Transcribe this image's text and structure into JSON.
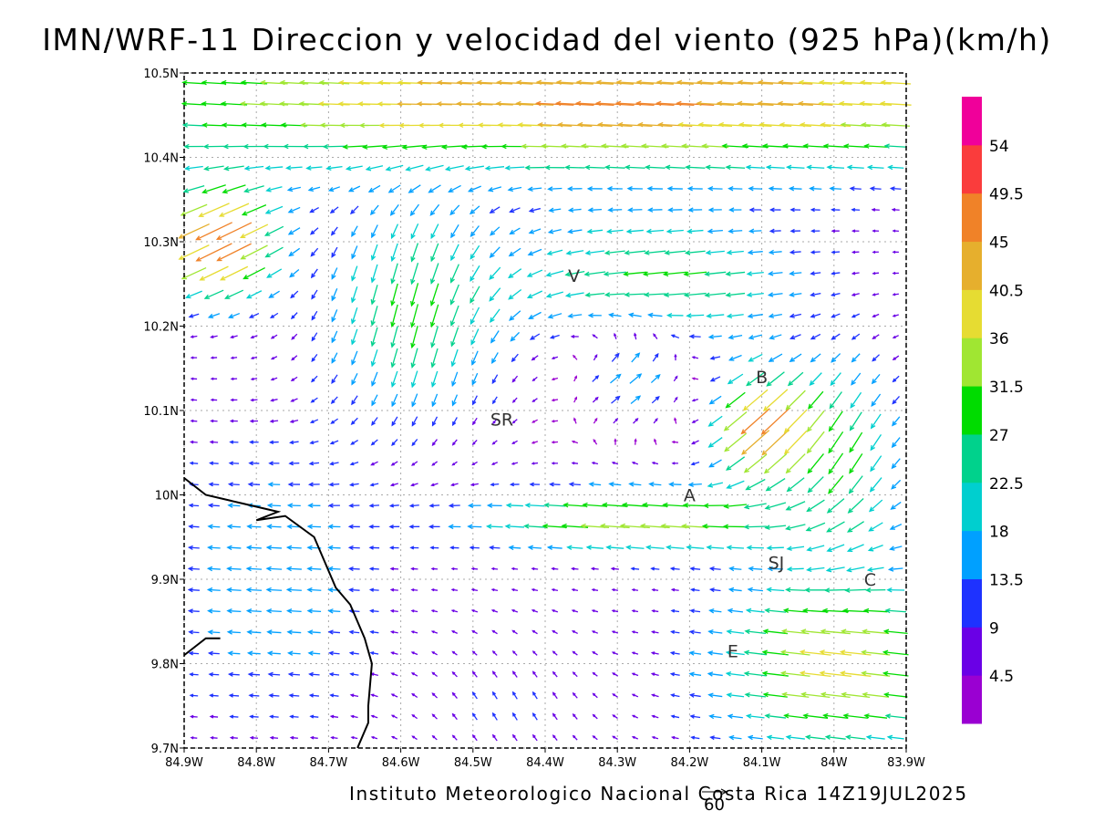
{
  "title": "IMN/WRF-11 Direccion y velocidad del viento (925 hPa)(km/h)",
  "footer": "Instituto Meteorologico Nacional Costa Rica 14Z19JUL2025",
  "reference_vector_label": "60",
  "colors": {
    "grid": "#aaaaaa",
    "frame": "#000000",
    "coast": "#000000"
  },
  "chart_data": {
    "type": "vector-field",
    "title": "IMN/WRF-11 Direccion y velocidad del viento (925 hPa)(km/h)",
    "variable": "wind direction and speed",
    "level": "925 hPa",
    "units": "km/h",
    "valid_time": "14Z19JUL2025",
    "x_ticks": [
      "84.9W",
      "84.8W",
      "84.7W",
      "84.6W",
      "84.5W",
      "84.4W",
      "84.3W",
      "84.2W",
      "84.1W",
      "84W",
      "83.9W"
    ],
    "x_tick_values": [
      -84.9,
      -84.8,
      -84.7,
      -84.6,
      -84.5,
      -84.4,
      -84.3,
      -84.2,
      -84.1,
      -84.0,
      -83.9
    ],
    "y_ticks": [
      "9.7N",
      "9.8N",
      "9.9N",
      "10N",
      "10.1N",
      "10.2N",
      "10.3N",
      "10.4N",
      "10.5N"
    ],
    "y_tick_values": [
      9.7,
      9.8,
      9.9,
      10.0,
      10.1,
      10.2,
      10.3,
      10.4,
      10.5
    ],
    "xlim": [
      -84.9,
      -83.9
    ],
    "ylim": [
      9.7,
      10.5
    ],
    "grid": true,
    "reference_vector": {
      "value": 60,
      "label": "60"
    },
    "colorbar": {
      "labels": [
        "4.5",
        "9",
        "13.5",
        "18",
        "22.5",
        "27",
        "31.5",
        "36",
        "40.5",
        "45",
        "49.5",
        "54"
      ],
      "values": [
        4.5,
        9,
        13.5,
        18,
        22.5,
        27,
        31.5,
        36,
        40.5,
        45,
        49.5,
        54
      ],
      "colors": [
        "#9a00d2",
        "#6a00e6",
        "#1e32ff",
        "#00a0ff",
        "#00cfcf",
        "#00d28c",
        "#00dc00",
        "#a0e632",
        "#e6dc32",
        "#e6af2d",
        "#f08228",
        "#fa3c3c",
        "#f0009a"
      ]
    },
    "places": [
      {
        "label": "V",
        "lon": -84.36,
        "lat": 10.26
      },
      {
        "label": "B",
        "lon": -84.1,
        "lat": 10.14
      },
      {
        "label": "SR",
        "lon": -84.46,
        "lat": 10.09
      },
      {
        "label": "A",
        "lon": -84.2,
        "lat": 10.0
      },
      {
        "label": "SJ",
        "lon": -84.08,
        "lat": 9.92
      },
      {
        "label": "C",
        "lon": -83.95,
        "lat": 9.9
      },
      {
        "label": "E",
        "lon": -84.14,
        "lat": 9.815
      }
    ],
    "coastline": [
      [
        -84.9,
        10.02
      ],
      [
        -84.87,
        10.0
      ],
      [
        -84.82,
        9.99
      ],
      [
        -84.77,
        9.98
      ],
      [
        -84.8,
        9.97
      ],
      [
        -84.76,
        9.975
      ],
      [
        -84.72,
        9.95
      ],
      [
        -84.7,
        9.91
      ],
      [
        -84.69,
        9.89
      ],
      [
        -84.67,
        9.87
      ],
      [
        -84.65,
        9.83
      ],
      [
        -84.64,
        9.8
      ],
      [
        -84.645,
        9.75
      ],
      [
        -84.645,
        9.73
      ],
      [
        -84.66,
        9.7
      ]
    ],
    "coastline2": [
      [
        -84.9,
        9.81
      ],
      [
        -84.87,
        9.83
      ],
      [
        -84.85,
        9.83
      ]
    ],
    "wind_regions": [
      {
        "region": "northern band 10.4N-10.5N",
        "direction_from": "E",
        "speed": "27-45 km/h"
      },
      {
        "region": "northwest corner near 84.85W 10.3N",
        "direction_from": "NE",
        "speed": "45-54 km/h"
      },
      {
        "region": "central mountains 84.75W-84.45W 10.1N-10.35N",
        "direction_from": "N",
        "speed": "18-40 km/h"
      },
      {
        "region": "southwest coastal 84.9W-84.65W 9.75N-10.0N",
        "direction_from": "E",
        "speed": "9-18 km/h"
      },
      {
        "region": "south central 84.6W-84.3W 9.7N-9.85N",
        "direction_from": "S",
        "speed": "4.5-13.5 km/h"
      },
      {
        "region": "Central Valley band near 9.95N-10.0N",
        "direction_from": "E",
        "speed": "27-36 km/h"
      },
      {
        "region": "east of B near 84.15W-84.05W 10.05N-10.15N",
        "direction_from": "NE",
        "speed": "36-54 km/h"
      },
      {
        "region": "southeast 84.2W-83.9W 9.7N-9.9N",
        "direction_from": "E",
        "speed": "27-40 km/h"
      }
    ]
  }
}
